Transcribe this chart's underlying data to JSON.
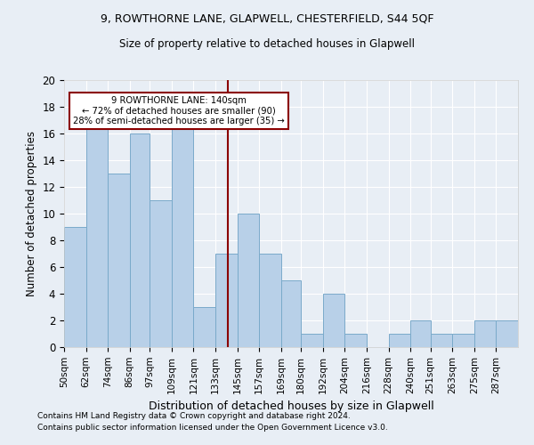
{
  "title1": "9, ROWTHORNE LANE, GLAPWELL, CHESTERFIELD, S44 5QF",
  "title2": "Size of property relative to detached houses in Glapwell",
  "xlabel": "Distribution of detached houses by size in Glapwell",
  "ylabel": "Number of detached properties",
  "footnote1": "Contains HM Land Registry data © Crown copyright and database right 2024.",
  "footnote2": "Contains public sector information licensed under the Open Government Licence v3.0.",
  "bin_labels": [
    "50sqm",
    "62sqm",
    "74sqm",
    "86sqm",
    "97sqm",
    "109sqm",
    "121sqm",
    "133sqm",
    "145sqm",
    "157sqm",
    "169sqm",
    "180sqm",
    "192sqm",
    "204sqm",
    "216sqm",
    "228sqm",
    "240sqm",
    "251sqm",
    "263sqm",
    "275sqm",
    "287sqm"
  ],
  "bin_edges": [
    50,
    62,
    74,
    86,
    97,
    109,
    121,
    133,
    145,
    157,
    169,
    180,
    192,
    204,
    216,
    228,
    240,
    251,
    263,
    275,
    287,
    299
  ],
  "values": [
    9,
    17,
    13,
    16,
    11,
    17,
    3,
    7,
    10,
    7,
    5,
    1,
    4,
    1,
    0,
    1,
    2,
    1,
    1,
    2,
    2
  ],
  "bar_color": "#b8d0e8",
  "bar_edge_color": "#7aaaca",
  "bg_color": "#e8eef5",
  "property_sqm": 140,
  "vline_color": "#8b0000",
  "annotation_text": "9 ROWTHORNE LANE: 140sqm\n← 72% of detached houses are smaller (90)\n28% of semi-detached houses are larger (35) →",
  "annotation_box_color": "#8b0000",
  "ylim": [
    0,
    20
  ],
  "yticks": [
    0,
    2,
    4,
    6,
    8,
    10,
    12,
    14,
    16,
    18,
    20
  ]
}
